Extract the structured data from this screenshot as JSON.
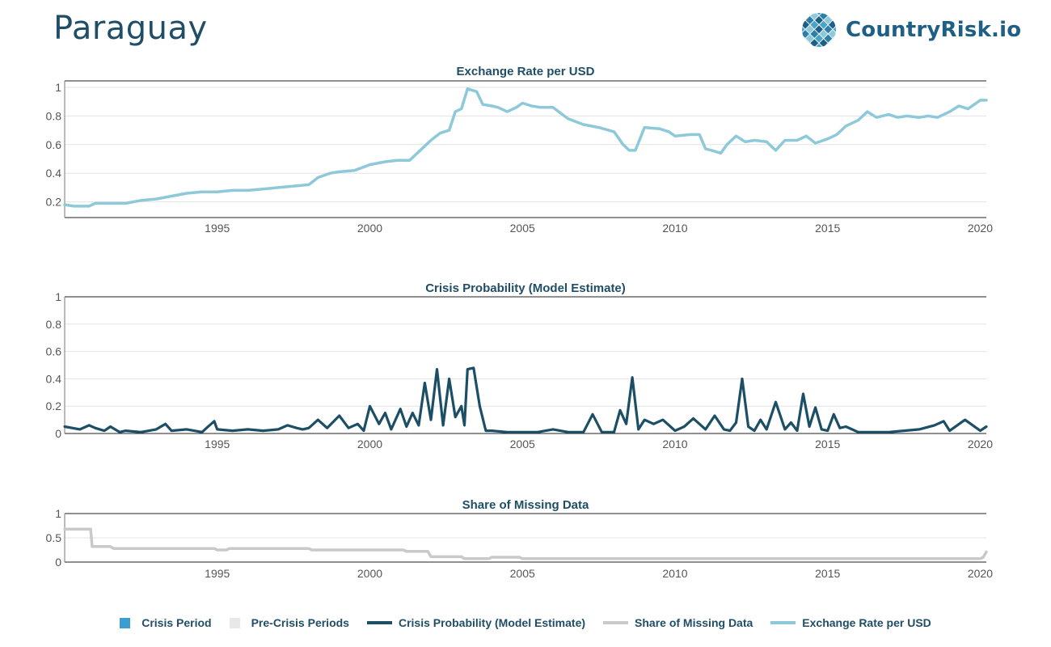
{
  "header": {
    "title": "Paraguay",
    "logo_text": "CountryRisk.io"
  },
  "colors": {
    "crisis_period": "#3a9fd0",
    "pre_crisis": "#e8e8e8",
    "crisis_probability": "#1c4f66",
    "missing_data": "#c9c9c9",
    "exchange_rate": "#8dc9d9",
    "title_text": "#1f4e66"
  },
  "legend": [
    {
      "label": "Crisis Period",
      "kind": "box",
      "color": "#3a9fd0"
    },
    {
      "label": "Pre-Crisis Periods",
      "kind": "box",
      "color": "#e8e8e8"
    },
    {
      "label": "Crisis Probability (Model Estimate)",
      "kind": "line",
      "color": "#1c4f66"
    },
    {
      "label": "Share of Missing Data",
      "kind": "line",
      "color": "#c9c9c9"
    },
    {
      "label": "Exchange Rate per USD",
      "kind": "line",
      "color": "#8dc9d9"
    }
  ],
  "chart_data": [
    {
      "type": "line",
      "title": "Exchange Rate per USD",
      "xlabel": "",
      "ylabel": "",
      "xlim": [
        1990.0,
        2020.2
      ],
      "ylim": [
        0.13,
        1.0
      ],
      "x_ticks": [
        1995,
        2000,
        2005,
        2010,
        2015,
        2020
      ],
      "y_ticks": [
        0.2,
        0.4,
        0.6,
        0.8,
        1
      ],
      "y_tick_labels": [
        "0.2",
        "0.4",
        "0.6",
        "0.8",
        "1"
      ],
      "grid": true,
      "series": [
        {
          "color": "#8dc9d9",
          "x": [
            1990.0,
            1990.3,
            1990.8,
            1991.0,
            1991.5,
            1992.0,
            1992.5,
            1993.0,
            1993.5,
            1994.0,
            1994.5,
            1995.0,
            1995.5,
            1996.0,
            1996.5,
            1997.0,
            1997.5,
            1998.0,
            1998.3,
            1998.7,
            1999.0,
            1999.5,
            2000.0,
            2000.5,
            2000.9,
            2001.3,
            2001.6,
            2002.0,
            2002.3,
            2002.6,
            2002.8,
            2003.0,
            2003.2,
            2003.5,
            2003.7,
            2004.0,
            2004.2,
            2004.5,
            2004.8,
            2005.0,
            2005.3,
            2005.6,
            2006.0,
            2006.5,
            2007.0,
            2007.5,
            2008.0,
            2008.3,
            2008.5,
            2008.7,
            2009.0,
            2009.5,
            2009.8,
            2010.0,
            2010.5,
            2010.8,
            2011.0,
            2011.2,
            2011.5,
            2011.7,
            2012.0,
            2012.3,
            2012.6,
            2013.0,
            2013.3,
            2013.6,
            2014.0,
            2014.3,
            2014.6,
            2015.0,
            2015.3,
            2015.6,
            2016.0,
            2016.3,
            2016.6,
            2017.0,
            2017.3,
            2017.6,
            2018.0,
            2018.3,
            2018.6,
            2019.0,
            2019.3,
            2019.6,
            2020.0,
            2020.2
          ],
          "y": [
            0.18,
            0.17,
            0.17,
            0.19,
            0.19,
            0.19,
            0.21,
            0.22,
            0.24,
            0.26,
            0.27,
            0.27,
            0.28,
            0.28,
            0.29,
            0.3,
            0.31,
            0.32,
            0.37,
            0.4,
            0.41,
            0.42,
            0.46,
            0.48,
            0.49,
            0.49,
            0.55,
            0.63,
            0.68,
            0.7,
            0.83,
            0.85,
            0.99,
            0.97,
            0.88,
            0.87,
            0.86,
            0.83,
            0.86,
            0.89,
            0.87,
            0.86,
            0.86,
            0.78,
            0.74,
            0.72,
            0.69,
            0.6,
            0.56,
            0.56,
            0.72,
            0.71,
            0.69,
            0.66,
            0.67,
            0.67,
            0.57,
            0.56,
            0.54,
            0.6,
            0.66,
            0.62,
            0.63,
            0.62,
            0.56,
            0.63,
            0.63,
            0.66,
            0.61,
            0.64,
            0.67,
            0.73,
            0.77,
            0.83,
            0.79,
            0.81,
            0.79,
            0.8,
            0.79,
            0.8,
            0.79,
            0.83,
            0.87,
            0.85,
            0.91,
            0.91
          ]
        }
      ]
    },
    {
      "type": "line",
      "title": "Crisis Probability (Model Estimate)",
      "xlabel": "",
      "ylabel": "",
      "xlim": [
        1990.0,
        2020.2
      ],
      "ylim": [
        0,
        1
      ],
      "x_ticks": [
        1995,
        2000,
        2005,
        2010,
        2015,
        2020
      ],
      "y_ticks": [
        0,
        0.2,
        0.4,
        0.6,
        0.8,
        1
      ],
      "y_tick_labels": [
        "0",
        "0.2",
        "0.4",
        "0.6",
        "0.8",
        "1"
      ],
      "grid": true,
      "series": [
        {
          "color": "#1c4f66",
          "x": [
            1990.0,
            1990.5,
            1990.8,
            1991.0,
            1991.3,
            1991.5,
            1991.8,
            1992.0,
            1992.5,
            1993.0,
            1993.3,
            1993.5,
            1994.0,
            1994.5,
            1994.7,
            1994.9,
            1995.0,
            1995.5,
            1996.0,
            1996.5,
            1997.0,
            1997.3,
            1997.6,
            1997.8,
            1998.0,
            1998.3,
            1998.6,
            1999.0,
            1999.3,
            1999.6,
            1999.8,
            2000.0,
            2000.3,
            2000.5,
            2000.7,
            2001.0,
            2001.2,
            2001.4,
            2001.6,
            2001.8,
            2002.0,
            2002.2,
            2002.4,
            2002.6,
            2002.8,
            2003.0,
            2003.1,
            2003.2,
            2003.4,
            2003.6,
            2003.8,
            2004.0,
            2004.5,
            2005.0,
            2005.5,
            2006.0,
            2006.5,
            2007.0,
            2007.3,
            2007.6,
            2008.0,
            2008.2,
            2008.4,
            2008.6,
            2008.8,
            2009.0,
            2009.3,
            2009.6,
            2010.0,
            2010.3,
            2010.6,
            2011.0,
            2011.3,
            2011.6,
            2011.8,
            2012.0,
            2012.2,
            2012.4,
            2012.6,
            2012.8,
            2013.0,
            2013.3,
            2013.6,
            2013.8,
            2014.0,
            2014.2,
            2014.4,
            2014.6,
            2014.8,
            2015.0,
            2015.2,
            2015.4,
            2015.6,
            2016.0,
            2016.5,
            2017.0,
            2017.5,
            2018.0,
            2018.5,
            2018.8,
            2019.0,
            2019.5,
            2020.0,
            2020.2
          ],
          "y": [
            0.05,
            0.03,
            0.06,
            0.04,
            0.02,
            0.05,
            0.01,
            0.02,
            0.01,
            0.03,
            0.07,
            0.02,
            0.03,
            0.01,
            0.05,
            0.09,
            0.03,
            0.02,
            0.03,
            0.02,
            0.03,
            0.06,
            0.04,
            0.03,
            0.04,
            0.1,
            0.04,
            0.13,
            0.04,
            0.07,
            0.02,
            0.2,
            0.07,
            0.15,
            0.03,
            0.18,
            0.05,
            0.15,
            0.06,
            0.37,
            0.1,
            0.47,
            0.06,
            0.4,
            0.12,
            0.2,
            0.06,
            0.47,
            0.48,
            0.2,
            0.02,
            0.02,
            0.01,
            0.01,
            0.01,
            0.03,
            0.01,
            0.01,
            0.14,
            0.01,
            0.01,
            0.17,
            0.07,
            0.41,
            0.03,
            0.1,
            0.07,
            0.1,
            0.02,
            0.05,
            0.11,
            0.03,
            0.13,
            0.03,
            0.02,
            0.08,
            0.4,
            0.05,
            0.02,
            0.1,
            0.03,
            0.23,
            0.03,
            0.08,
            0.02,
            0.29,
            0.05,
            0.19,
            0.03,
            0.02,
            0.14,
            0.04,
            0.05,
            0.01,
            0.01,
            0.01,
            0.02,
            0.03,
            0.06,
            0.09,
            0.02,
            0.1,
            0.02,
            0.05
          ]
        }
      ]
    },
    {
      "type": "line",
      "title": "Share of Missing Data",
      "xlabel": "",
      "ylabel": "",
      "xlim": [
        1990.0,
        2020.2
      ],
      "ylim": [
        0,
        1
      ],
      "x_ticks": [
        1995,
        2000,
        2005,
        2010,
        2015,
        2020
      ],
      "y_ticks": [
        0,
        0.5,
        1
      ],
      "y_tick_labels": [
        "0",
        "0.5",
        "1"
      ],
      "grid": true,
      "series": [
        {
          "color": "#c9c9c9",
          "x": [
            1990.0,
            1990.85,
            1990.9,
            1991.5,
            1991.6,
            1994.9,
            1995.0,
            1995.3,
            1995.4,
            1998.0,
            1998.1,
            2001.1,
            2001.2,
            2001.9,
            2002.0,
            2003.0,
            2003.1,
            2003.9,
            2004.0,
            2004.9,
            2005.0,
            2020.0,
            2020.1,
            2020.2
          ],
          "y": [
            0.68,
            0.68,
            0.32,
            0.32,
            0.28,
            0.28,
            0.25,
            0.25,
            0.28,
            0.28,
            0.25,
            0.25,
            0.22,
            0.22,
            0.11,
            0.11,
            0.07,
            0.07,
            0.1,
            0.1,
            0.07,
            0.07,
            0.1,
            0.21
          ]
        }
      ]
    }
  ]
}
